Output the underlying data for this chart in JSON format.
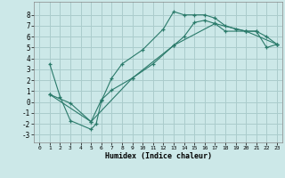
{
  "xlabel": "Humidex (Indice chaleur)",
  "bg_color": "#cce8e8",
  "grid_color": "#aacccc",
  "line_color": "#2a7a6a",
  "xlim": [
    -0.5,
    23.5
  ],
  "ylim": [
    -3.7,
    9.2
  ],
  "yticks": [
    -3,
    -2,
    -1,
    0,
    1,
    2,
    3,
    4,
    5,
    6,
    7,
    8
  ],
  "xticks": [
    0,
    1,
    2,
    3,
    4,
    5,
    6,
    7,
    8,
    9,
    10,
    11,
    12,
    13,
    14,
    15,
    16,
    17,
    18,
    19,
    20,
    21,
    22,
    23
  ],
  "series": [
    {
      "x": [
        1,
        2,
        3,
        5,
        5.5,
        6,
        7,
        8,
        10,
        12,
        13,
        14,
        15,
        16,
        17,
        18,
        19,
        20,
        21,
        22,
        23
      ],
      "y": [
        3.5,
        0.5,
        -1.7,
        -2.5,
        -2.0,
        0.1,
        2.2,
        3.5,
        4.8,
        6.7,
        8.3,
        8.0,
        8.0,
        8.0,
        7.7,
        7.0,
        6.7,
        6.5,
        6.5,
        6.0,
        5.3
      ]
    },
    {
      "x": [
        1,
        3,
        5,
        6,
        7,
        9,
        11,
        13,
        14,
        15,
        16,
        17,
        18,
        20,
        21,
        22,
        23
      ],
      "y": [
        0.7,
        -0.1,
        -1.8,
        0.2,
        1.1,
        2.2,
        3.5,
        5.2,
        6.0,
        7.3,
        7.5,
        7.2,
        6.5,
        6.5,
        6.5,
        5.0,
        5.3
      ]
    },
    {
      "x": [
        1,
        5,
        9,
        13,
        17,
        20,
        23
      ],
      "y": [
        0.7,
        -1.8,
        2.2,
        5.2,
        7.2,
        6.5,
        5.3
      ]
    }
  ]
}
